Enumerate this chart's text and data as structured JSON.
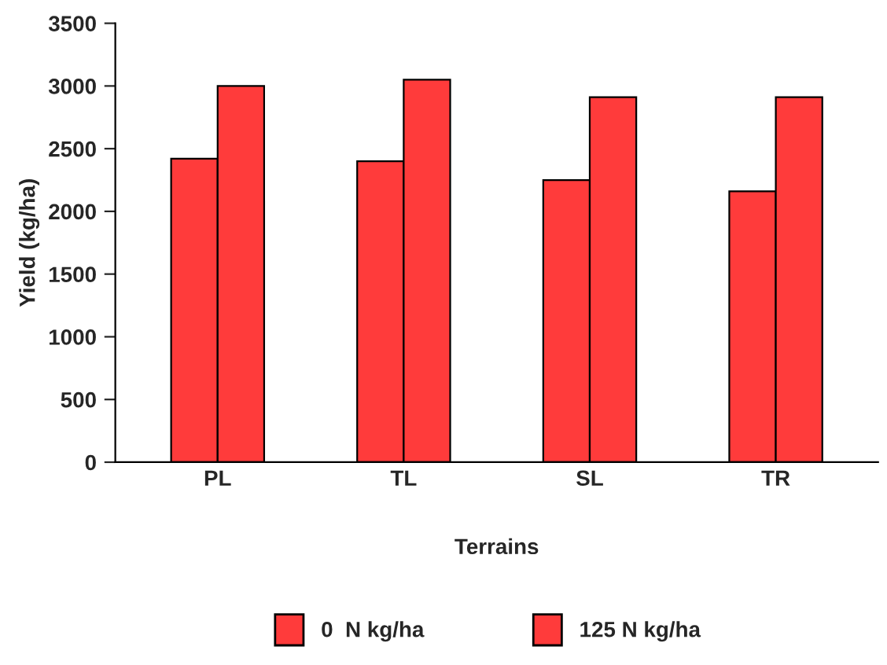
{
  "chart_data": {
    "type": "bar",
    "xlabel": "Terrains",
    "ylabel": "Yield (kg/ha)",
    "categories": [
      "PL",
      "TL",
      "SL",
      "TR"
    ],
    "series": [
      {
        "name": "0  N kg/ha",
        "color": "#ff3b3b",
        "values": [
          2420,
          2400,
          2250,
          2160
        ]
      },
      {
        "name": "125 N kg/ha",
        "color": "#ff3b3b",
        "values": [
          3000,
          3050,
          2910,
          2910
        ]
      }
    ],
    "ylim": [
      0,
      3500
    ],
    "yticks": [
      0,
      500,
      1000,
      1500,
      2000,
      2500,
      3000,
      3500
    ],
    "grid": false,
    "legend": "bottom"
  }
}
